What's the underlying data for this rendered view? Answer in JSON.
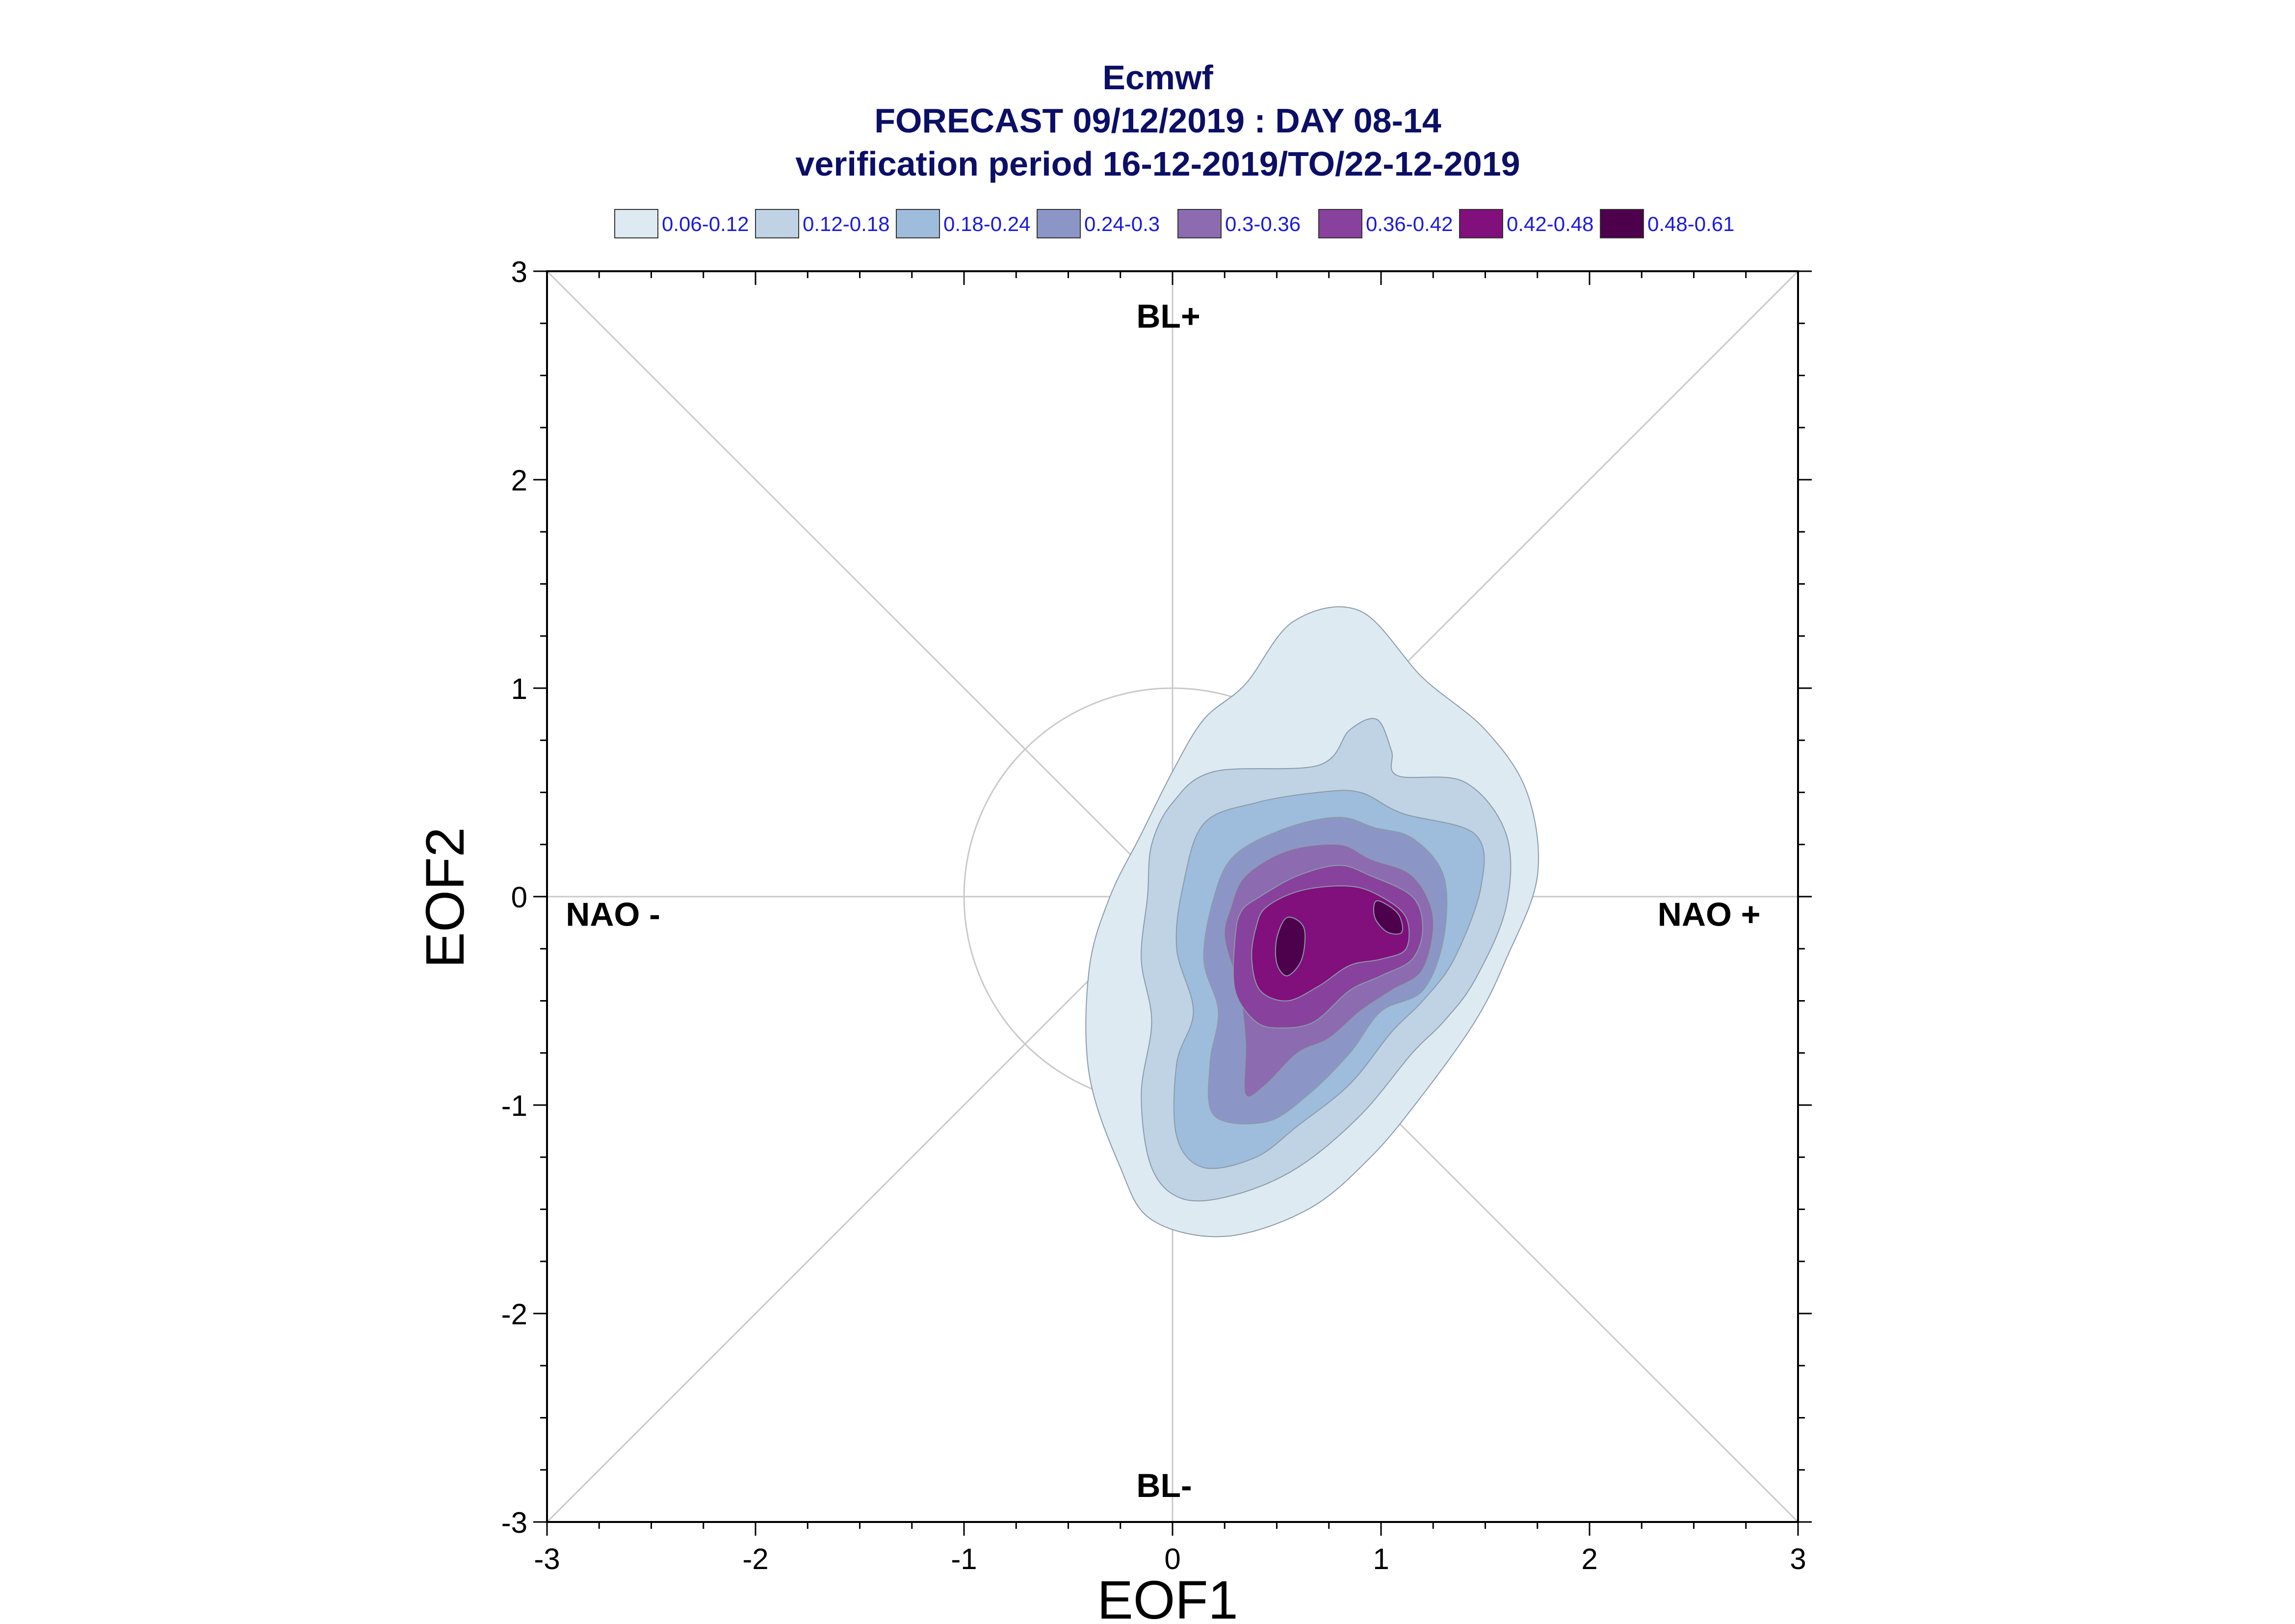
{
  "title": {
    "line1": "Ecmwf",
    "line2": "FORECAST 09/12/2019 : DAY 08-14",
    "line3": "verification period 16-12-2019/TO/22-12-2019"
  },
  "chart_data": {
    "type": "contour",
    "xlabel": "EOF1",
    "ylabel": "EOF2",
    "xlim": [
      -3,
      3
    ],
    "ylim": [
      -3,
      3
    ],
    "xticks": [
      "-3",
      "-2",
      "-1",
      "0",
      "1",
      "2",
      "3"
    ],
    "yticks": [
      "-3",
      "-2",
      "-1",
      "0",
      "1",
      "2",
      "3"
    ],
    "regime_labels": {
      "top": "BL+",
      "bottom": "BL-",
      "left": "NAO -",
      "right": "NAO +"
    },
    "unit_circle_radius": 1,
    "legend": [
      {
        "label": "0.06-0.12",
        "color": "#deeaf2"
      },
      {
        "label": "0.12-0.18",
        "color": "#bfd3e5"
      },
      {
        "label": "0.18-0.24",
        "color": "#9ebcdb"
      },
      {
        "label": "0.24-0.3",
        "color": "#8c96c6"
      },
      {
        "label": "0.3-0.36",
        "color": "#8c6bb1"
      },
      {
        "label": "0.36-0.42",
        "color": "#88419d"
      },
      {
        "label": "0.42-0.48",
        "color": "#810f7c"
      },
      {
        "label": "0.48-0.61",
        "color": "#4d004b"
      }
    ],
    "contour_levels": [
      [
        [
          0.35,
          1.02
        ],
        [
          0.58,
          1.32
        ],
        [
          0.9,
          1.37
        ],
        [
          1.2,
          1.05
        ],
        [
          1.5,
          0.8
        ],
        [
          1.7,
          0.5
        ],
        [
          1.75,
          0.1
        ],
        [
          1.6,
          -0.3
        ],
        [
          1.45,
          -0.6
        ],
        [
          1.2,
          -0.95
        ],
        [
          0.95,
          -1.25
        ],
        [
          0.65,
          -1.5
        ],
        [
          0.25,
          -1.63
        ],
        [
          -0.1,
          -1.55
        ],
        [
          -0.25,
          -1.3
        ],
        [
          -0.4,
          -0.85
        ],
        [
          -0.4,
          -0.35
        ],
        [
          -0.3,
          0.0
        ],
        [
          -0.15,
          0.3
        ],
        [
          0.0,
          0.6
        ],
        [
          0.15,
          0.85
        ]
      ],
      [
        [
          0.0,
          0.45
        ],
        [
          0.2,
          0.6
        ],
        [
          0.7,
          0.63
        ],
        [
          0.85,
          0.8
        ],
        [
          0.98,
          0.85
        ],
        [
          1.05,
          0.7
        ],
        [
          1.08,
          0.58
        ],
        [
          1.4,
          0.55
        ],
        [
          1.6,
          0.3
        ],
        [
          1.6,
          -0.05
        ],
        [
          1.45,
          -0.4
        ],
        [
          1.3,
          -0.6
        ],
        [
          1.15,
          -0.75
        ],
        [
          0.9,
          -1.05
        ],
        [
          0.6,
          -1.3
        ],
        [
          0.3,
          -1.43
        ],
        [
          0.05,
          -1.45
        ],
        [
          -0.1,
          -1.3
        ],
        [
          -0.15,
          -0.95
        ],
        [
          -0.1,
          -0.6
        ],
        [
          -0.15,
          -0.3
        ],
        [
          -0.12,
          0.0
        ],
        [
          -0.1,
          0.25
        ]
      ],
      [
        [
          0.15,
          0.35
        ],
        [
          0.4,
          0.45
        ],
        [
          0.7,
          0.5
        ],
        [
          0.9,
          0.5
        ],
        [
          1.1,
          0.4
        ],
        [
          1.45,
          0.3
        ],
        [
          1.48,
          0.05
        ],
        [
          1.35,
          -0.3
        ],
        [
          1.2,
          -0.5
        ],
        [
          1.05,
          -0.65
        ],
        [
          0.85,
          -0.9
        ],
        [
          0.6,
          -1.1
        ],
        [
          0.4,
          -1.25
        ],
        [
          0.15,
          -1.3
        ],
        [
          0.02,
          -1.15
        ],
        [
          0.02,
          -0.8
        ],
        [
          0.1,
          -0.55
        ],
        [
          0.02,
          -0.25
        ],
        [
          0.05,
          0.05
        ]
      ],
      [
        [
          0.3,
          0.2
        ],
        [
          0.55,
          0.33
        ],
        [
          0.8,
          0.38
        ],
        [
          0.97,
          0.33
        ],
        [
          1.15,
          0.28
        ],
        [
          1.3,
          0.1
        ],
        [
          1.3,
          -0.2
        ],
        [
          1.2,
          -0.45
        ],
        [
          1.0,
          -0.55
        ],
        [
          0.85,
          -0.75
        ],
        [
          0.65,
          -0.95
        ],
        [
          0.45,
          -1.08
        ],
        [
          0.2,
          -1.05
        ],
        [
          0.18,
          -0.8
        ],
        [
          0.22,
          -0.55
        ],
        [
          0.15,
          -0.3
        ],
        [
          0.2,
          0.0
        ]
      ],
      [
        [
          0.35,
          0.1
        ],
        [
          0.55,
          0.22
        ],
        [
          0.8,
          0.25
        ],
        [
          0.95,
          0.18
        ],
        [
          1.15,
          0.1
        ],
        [
          1.25,
          -0.1
        ],
        [
          1.2,
          -0.35
        ],
        [
          1.05,
          -0.45
        ],
        [
          0.9,
          -0.55
        ],
        [
          0.75,
          -0.68
        ],
        [
          0.6,
          -0.75
        ],
        [
          0.45,
          -0.9
        ],
        [
          0.35,
          -0.95
        ],
        [
          0.35,
          -0.7
        ],
        [
          0.32,
          -0.45
        ],
        [
          0.25,
          -0.2
        ],
        [
          0.28,
          -0.05
        ]
      ],
      [
        [
          0.42,
          0.0
        ],
        [
          0.6,
          0.1
        ],
        [
          0.8,
          0.15
        ],
        [
          0.95,
          0.1
        ],
        [
          1.15,
          0.0
        ],
        [
          1.2,
          -0.15
        ],
        [
          1.15,
          -0.3
        ],
        [
          1.0,
          -0.38
        ],
        [
          0.85,
          -0.45
        ],
        [
          0.68,
          -0.6
        ],
        [
          0.52,
          -0.63
        ],
        [
          0.4,
          -0.6
        ],
        [
          0.3,
          -0.45
        ],
        [
          0.3,
          -0.2
        ],
        [
          0.33,
          -0.07
        ]
      ],
      [
        [
          0.45,
          -0.05
        ],
        [
          0.62,
          0.03
        ],
        [
          0.85,
          0.05
        ],
        [
          1.0,
          0.0
        ],
        [
          1.12,
          -0.1
        ],
        [
          1.12,
          -0.25
        ],
        [
          1.0,
          -0.3
        ],
        [
          0.85,
          -0.33
        ],
        [
          0.7,
          -0.43
        ],
        [
          0.55,
          -0.5
        ],
        [
          0.42,
          -0.45
        ],
        [
          0.38,
          -0.3
        ],
        [
          0.4,
          -0.15
        ]
      ],
      [
        [
          0.55,
          -0.1
        ],
        [
          0.63,
          -0.15
        ],
        [
          0.62,
          -0.3
        ],
        [
          0.55,
          -0.38
        ],
        [
          0.5,
          -0.32
        ],
        [
          0.5,
          -0.2
        ]
      ],
      [
        [
          0.98,
          -0.02
        ],
        [
          1.08,
          -0.08
        ],
        [
          1.1,
          -0.17
        ],
        [
          1.03,
          -0.17
        ],
        [
          0.97,
          -0.1
        ]
      ]
    ]
  }
}
